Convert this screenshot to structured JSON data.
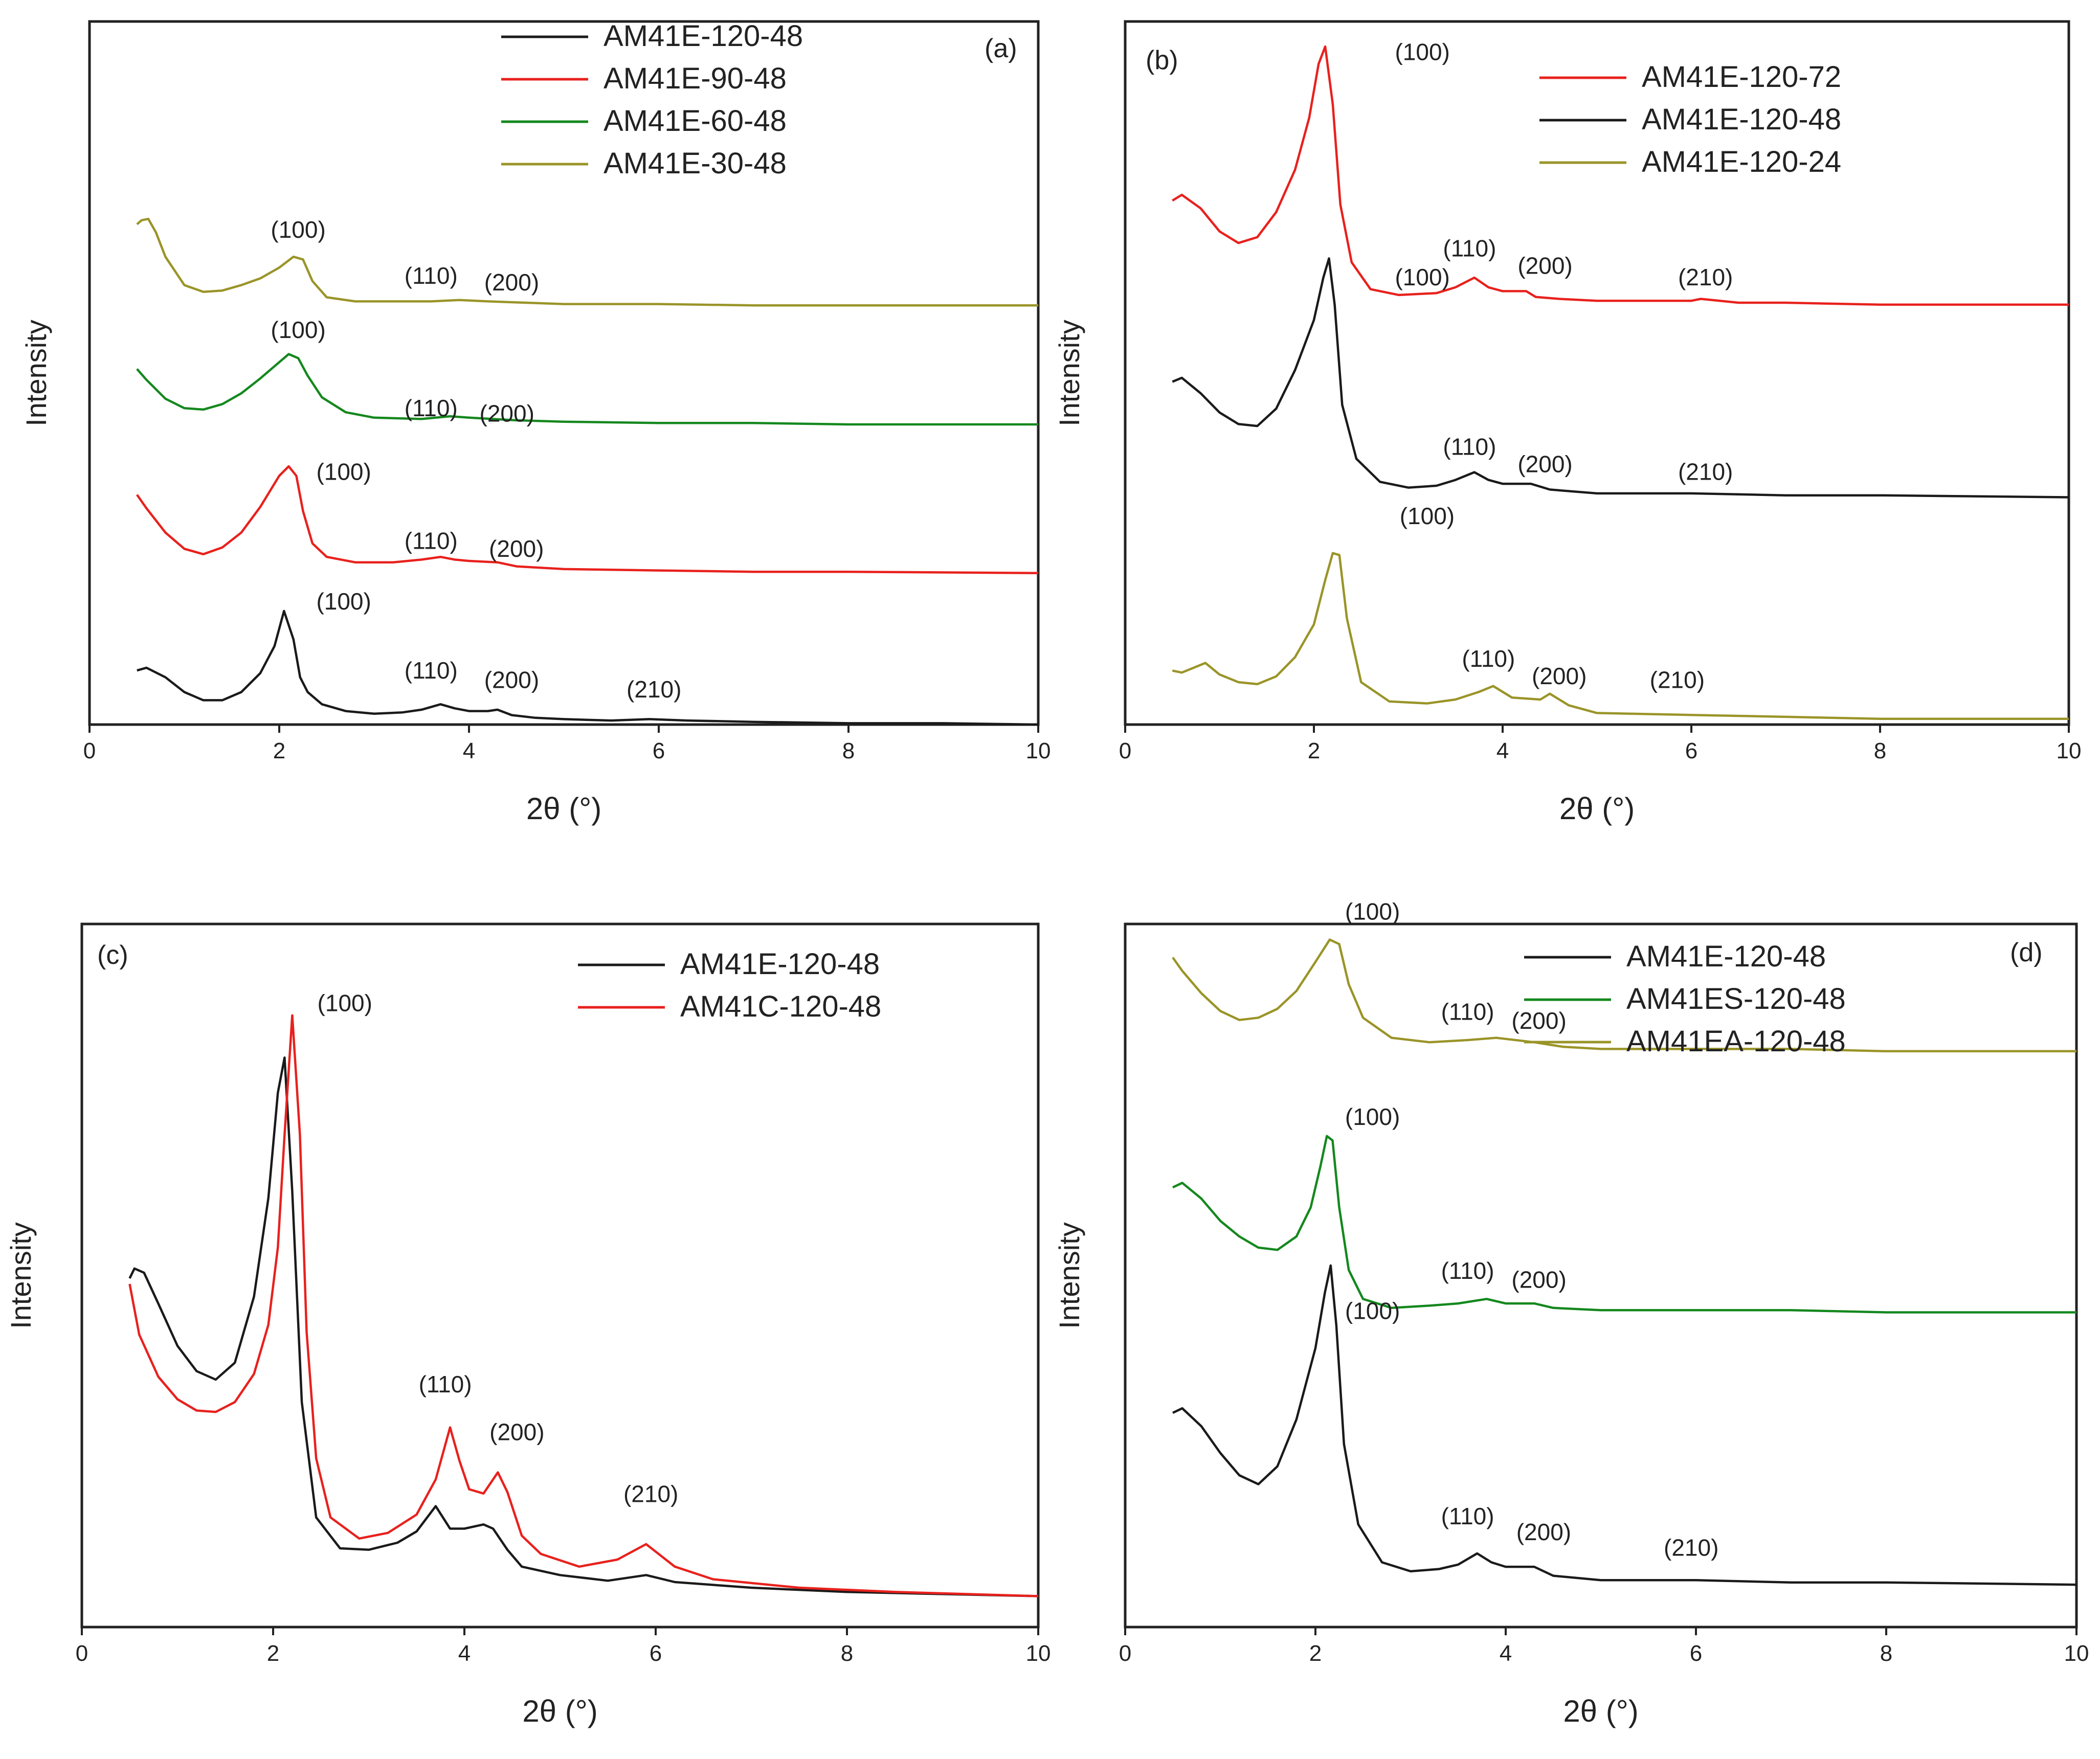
{
  "figure": {
    "xlabel": "2θ (°)",
    "ylabel": "Intensity",
    "xticks": [
      0,
      2,
      4,
      6,
      8,
      10
    ]
  },
  "colors": {
    "black": "#1a1a1a",
    "red": "#e8211d",
    "green": "#14881e",
    "olive": "#9a9428"
  },
  "chart_data": [
    {
      "panel": "(a)",
      "type": "line",
      "title": "",
      "xlabel": "2θ (°)",
      "ylabel": "Intensity",
      "xlim": [
        0,
        10
      ],
      "ylim": [
        0,
        5.2
      ],
      "legend": [
        "AM41E-120-48",
        "AM41E-90-48",
        "AM41E-60-48",
        "AM41E-30-48"
      ],
      "series": [
        {
          "name": "AM41E-120-48",
          "color": "#1a1a1a",
          "x": [
            0.5,
            0.6,
            0.8,
            1.0,
            1.2,
            1.4,
            1.6,
            1.8,
            1.95,
            2.05,
            2.15,
            2.22,
            2.3,
            2.45,
            2.7,
            3.0,
            3.3,
            3.5,
            3.7,
            3.85,
            4.0,
            4.2,
            4.3,
            4.45,
            4.7,
            5.0,
            5.5,
            5.9,
            6.3,
            7.0,
            8.0,
            9.0,
            10.0
          ],
          "y": [
            0.4,
            0.42,
            0.35,
            0.24,
            0.18,
            0.18,
            0.24,
            0.38,
            0.58,
            0.84,
            0.63,
            0.35,
            0.24,
            0.15,
            0.1,
            0.08,
            0.09,
            0.11,
            0.15,
            0.12,
            0.1,
            0.1,
            0.11,
            0.07,
            0.05,
            0.04,
            0.03,
            0.04,
            0.03,
            0.02,
            0.01,
            0.01,
            0.0
          ]
        },
        {
          "name": "AM41E-90-48",
          "color": "#e8211d",
          "x": [
            0.5,
            0.6,
            0.8,
            1.0,
            1.2,
            1.4,
            1.6,
            1.8,
            2.0,
            2.1,
            2.18,
            2.25,
            2.35,
            2.5,
            2.8,
            3.2,
            3.5,
            3.7,
            3.85,
            4.0,
            4.3,
            4.5,
            5.0,
            6.0,
            7.0,
            8.0,
            10.0
          ],
          "y": [
            1.7,
            1.6,
            1.42,
            1.3,
            1.26,
            1.31,
            1.42,
            1.61,
            1.84,
            1.91,
            1.84,
            1.58,
            1.34,
            1.24,
            1.2,
            1.2,
            1.22,
            1.24,
            1.22,
            1.21,
            1.2,
            1.17,
            1.15,
            1.14,
            1.13,
            1.13,
            1.12
          ]
        },
        {
          "name": "AM41E-60-48",
          "color": "#14881e",
          "x": [
            0.5,
            0.6,
            0.8,
            1.0,
            1.2,
            1.4,
            1.6,
            1.8,
            2.0,
            2.1,
            2.2,
            2.3,
            2.45,
            2.7,
            3.0,
            3.5,
            3.8,
            4.0,
            4.5,
            5.0,
            6.0,
            7.0,
            8.0,
            10.0
          ],
          "y": [
            2.63,
            2.55,
            2.41,
            2.34,
            2.33,
            2.37,
            2.45,
            2.56,
            2.68,
            2.74,
            2.71,
            2.58,
            2.42,
            2.31,
            2.27,
            2.26,
            2.28,
            2.27,
            2.25,
            2.24,
            2.23,
            2.23,
            2.22,
            2.22
          ]
        },
        {
          "name": "AM41E-30-48",
          "color": "#9a9428",
          "x": [
            0.5,
            0.55,
            0.62,
            0.7,
            0.8,
            1.0,
            1.2,
            1.4,
            1.6,
            1.8,
            2.0,
            2.15,
            2.25,
            2.35,
            2.5,
            2.8,
            3.2,
            3.6,
            3.9,
            4.2,
            4.6,
            5.0,
            6.0,
            7.0,
            8.0,
            10.0
          ],
          "y": [
            3.7,
            3.73,
            3.74,
            3.64,
            3.46,
            3.25,
            3.2,
            3.21,
            3.25,
            3.3,
            3.38,
            3.46,
            3.44,
            3.28,
            3.16,
            3.13,
            3.13,
            3.13,
            3.14,
            3.13,
            3.12,
            3.11,
            3.11,
            3.1,
            3.1,
            3.1
          ]
        }
      ],
      "annotations": [
        {
          "text": "(100)",
          "x": 2.2,
          "y": 3.6
        },
        {
          "text": "(110)",
          "x": 3.6,
          "y": 3.26
        },
        {
          "text": "(200)",
          "x": 4.45,
          "y": 3.21
        },
        {
          "text": "(100)",
          "x": 2.2,
          "y": 2.86
        },
        {
          "text": "(110)",
          "x": 3.6,
          "y": 2.28
        },
        {
          "text": "(200)",
          "x": 4.4,
          "y": 2.24
        },
        {
          "text": "(100)",
          "x": 2.68,
          "y": 1.81
        },
        {
          "text": "(110)",
          "x": 3.6,
          "y": 1.3
        },
        {
          "text": "(200)",
          "x": 4.5,
          "y": 1.24
        },
        {
          "text": "(100)",
          "x": 2.68,
          "y": 0.85
        },
        {
          "text": "(110)",
          "x": 3.6,
          "y": 0.34
        },
        {
          "text": "(200)",
          "x": 4.45,
          "y": 0.27
        },
        {
          "text": "(210)",
          "x": 5.95,
          "y": 0.2
        }
      ]
    },
    {
      "panel": "(b)",
      "type": "line",
      "title": "",
      "xlabel": "2θ (°)",
      "ylabel": "Intensity",
      "xlim": [
        0,
        10
      ],
      "ylim": [
        0,
        3.65
      ],
      "legend": [
        "AM41E-120-72",
        "AM41E-120-48",
        "AM41E-120-24"
      ],
      "series": [
        {
          "name": "AM41E-120-72",
          "color": "#e8211d",
          "x": [
            0.5,
            0.6,
            0.8,
            1.0,
            1.2,
            1.4,
            1.6,
            1.8,
            1.95,
            2.05,
            2.12,
            2.2,
            2.28,
            2.4,
            2.6,
            2.9,
            3.3,
            3.5,
            3.7,
            3.85,
            4.0,
            4.25,
            4.35,
            4.6,
            5.0,
            5.5,
            6.0,
            6.1,
            6.5,
            7.0,
            8.0,
            10.0
          ],
          "y": [
            2.72,
            2.75,
            2.68,
            2.56,
            2.5,
            2.53,
            2.66,
            2.88,
            3.15,
            3.43,
            3.52,
            3.22,
            2.7,
            2.4,
            2.26,
            2.23,
            2.24,
            2.27,
            2.32,
            2.27,
            2.25,
            2.25,
            2.22,
            2.21,
            2.2,
            2.2,
            2.2,
            2.21,
            2.19,
            2.19,
            2.18,
            2.18
          ]
        },
        {
          "name": "AM41E-120-48",
          "color": "#1a1a1a",
          "x": [
            0.5,
            0.6,
            0.8,
            1.0,
            1.2,
            1.4,
            1.6,
            1.8,
            2.0,
            2.1,
            2.16,
            2.22,
            2.3,
            2.45,
            2.7,
            3.0,
            3.3,
            3.5,
            3.7,
            3.85,
            4.0,
            4.3,
            4.5,
            5.0,
            5.5,
            6.0,
            7.0,
            8.0,
            10.0
          ],
          "y": [
            1.78,
            1.8,
            1.72,
            1.62,
            1.56,
            1.55,
            1.64,
            1.84,
            2.1,
            2.32,
            2.42,
            2.18,
            1.66,
            1.38,
            1.26,
            1.23,
            1.24,
            1.27,
            1.31,
            1.27,
            1.25,
            1.25,
            1.22,
            1.2,
            1.2,
            1.2,
            1.19,
            1.19,
            1.18
          ]
        },
        {
          "name": "AM41E-120-24",
          "color": "#9a9428",
          "x": [
            0.5,
            0.6,
            0.7,
            0.85,
            1.0,
            1.2,
            1.4,
            1.6,
            1.8,
            2.0,
            2.12,
            2.2,
            2.27,
            2.35,
            2.5,
            2.8,
            3.2,
            3.5,
            3.75,
            3.9,
            4.1,
            4.4,
            4.5,
            4.7,
            5.0,
            6.0,
            7.0,
            8.0,
            10.0
          ],
          "y": [
            0.28,
            0.27,
            0.29,
            0.32,
            0.26,
            0.22,
            0.21,
            0.25,
            0.35,
            0.52,
            0.75,
            0.89,
            0.88,
            0.55,
            0.22,
            0.12,
            0.11,
            0.13,
            0.17,
            0.2,
            0.14,
            0.13,
            0.16,
            0.1,
            0.06,
            0.05,
            0.04,
            0.03,
            0.03
          ]
        }
      ],
      "annotations": [
        {
          "text": "(100)",
          "x": 3.15,
          "y": 3.45
        },
        {
          "text": "(110)",
          "x": 3.65,
          "y": 2.43
        },
        {
          "text": "(200)",
          "x": 4.45,
          "y": 2.34
        },
        {
          "text": "(210)",
          "x": 6.15,
          "y": 2.28
        },
        {
          "text": "(100)",
          "x": 3.15,
          "y": 2.28
        },
        {
          "text": "(110)",
          "x": 3.65,
          "y": 1.4
        },
        {
          "text": "(200)",
          "x": 4.45,
          "y": 1.31
        },
        {
          "text": "(210)",
          "x": 6.15,
          "y": 1.27
        },
        {
          "text": "(100)",
          "x": 3.2,
          "y": 1.04
        },
        {
          "text": "(110)",
          "x": 3.85,
          "y": 0.3
        },
        {
          "text": "(200)",
          "x": 4.6,
          "y": 0.21
        },
        {
          "text": "(210)",
          "x": 5.85,
          "y": 0.19
        }
      ]
    },
    {
      "panel": "(c)",
      "type": "line",
      "title": "",
      "xlabel": "2θ (°)",
      "ylabel": "Intensity",
      "xlim": [
        0,
        10
      ],
      "ylim": [
        0,
        5.0
      ],
      "legend": [
        "AM41E-120-48",
        "AM41C-120-48"
      ],
      "series": [
        {
          "name": "AM41E-120-48",
          "color": "#1a1a1a",
          "x": [
            0.5,
            0.55,
            0.65,
            0.8,
            1.0,
            1.2,
            1.4,
            1.6,
            1.8,
            1.95,
            2.05,
            2.12,
            2.2,
            2.3,
            2.45,
            2.7,
            3.0,
            3.3,
            3.5,
            3.7,
            3.85,
            4.0,
            4.2,
            4.3,
            4.45,
            4.6,
            5.0,
            5.5,
            5.9,
            6.2,
            7.0,
            8.0,
            10.0
          ],
          "y": [
            2.48,
            2.55,
            2.52,
            2.3,
            2.0,
            1.82,
            1.76,
            1.88,
            2.35,
            3.05,
            3.8,
            4.05,
            3.1,
            1.6,
            0.78,
            0.56,
            0.55,
            0.6,
            0.68,
            0.86,
            0.7,
            0.7,
            0.73,
            0.7,
            0.55,
            0.43,
            0.37,
            0.33,
            0.37,
            0.32,
            0.28,
            0.25,
            0.22
          ]
        },
        {
          "name": "AM41C-120-48",
          "color": "#e8211d",
          "x": [
            0.5,
            0.6,
            0.8,
            1.0,
            1.2,
            1.4,
            1.6,
            1.8,
            1.95,
            2.05,
            2.12,
            2.2,
            2.28,
            2.35,
            2.45,
            2.6,
            2.9,
            3.2,
            3.5,
            3.7,
            3.85,
            3.95,
            4.05,
            4.2,
            4.35,
            4.45,
            4.6,
            4.8,
            5.2,
            5.6,
            5.9,
            6.2,
            6.6,
            7.5,
            8.5,
            10.0
          ],
          "y": [
            2.44,
            2.08,
            1.78,
            1.62,
            1.54,
            1.53,
            1.6,
            1.8,
            2.15,
            2.7,
            3.5,
            4.35,
            3.5,
            2.1,
            1.2,
            0.78,
            0.63,
            0.67,
            0.8,
            1.05,
            1.42,
            1.18,
            0.98,
            0.95,
            1.1,
            0.96,
            0.65,
            0.52,
            0.43,
            0.48,
            0.59,
            0.43,
            0.34,
            0.28,
            0.25,
            0.22
          ]
        }
      ],
      "annotations": [
        {
          "text": "(100)",
          "x": 2.75,
          "y": 4.38
        },
        {
          "text": "(110)",
          "x": 3.8,
          "y": 1.67
        },
        {
          "text": "(200)",
          "x": 4.55,
          "y": 1.33
        },
        {
          "text": "(210)",
          "x": 5.95,
          "y": 0.89
        }
      ]
    },
    {
      "panel": "(d)",
      "type": "line",
      "title": "",
      "xlabel": "2θ (°)",
      "ylabel": "Intensity",
      "xlim": [
        0,
        10
      ],
      "ylim": [
        0,
        3.15
      ],
      "legend": [
        "AM41E-120-48",
        "AM41ES-120-48",
        "AM41EA-120-48"
      ],
      "series": [
        {
          "name": "AM41E-120-48",
          "color": "#1a1a1a",
          "x": [
            0.5,
            0.6,
            0.8,
            1.0,
            1.2,
            1.4,
            1.6,
            1.8,
            2.0,
            2.1,
            2.16,
            2.22,
            2.3,
            2.45,
            2.7,
            3.0,
            3.3,
            3.5,
            3.7,
            3.85,
            4.0,
            4.3,
            4.5,
            5.0,
            5.5,
            6.0,
            7.0,
            8.0,
            10.0
          ],
          "y": [
            0.96,
            0.98,
            0.9,
            0.78,
            0.68,
            0.64,
            0.72,
            0.93,
            1.25,
            1.5,
            1.62,
            1.35,
            0.82,
            0.46,
            0.29,
            0.25,
            0.26,
            0.28,
            0.33,
            0.29,
            0.27,
            0.27,
            0.23,
            0.21,
            0.21,
            0.21,
            0.2,
            0.2,
            0.19
          ]
        },
        {
          "name": "AM41ES-120-48",
          "color": "#14881e",
          "x": [
            0.5,
            0.6,
            0.8,
            1.0,
            1.2,
            1.4,
            1.6,
            1.8,
            1.95,
            2.05,
            2.12,
            2.18,
            2.25,
            2.35,
            2.5,
            2.8,
            3.2,
            3.5,
            3.8,
            4.0,
            4.3,
            4.5,
            5.0,
            6.0,
            7.0,
            8.0,
            10.0
          ],
          "y": [
            1.97,
            1.99,
            1.92,
            1.82,
            1.75,
            1.7,
            1.69,
            1.75,
            1.88,
            2.06,
            2.2,
            2.18,
            1.88,
            1.6,
            1.47,
            1.43,
            1.44,
            1.45,
            1.47,
            1.45,
            1.45,
            1.43,
            1.42,
            1.42,
            1.42,
            1.41,
            1.41
          ]
        },
        {
          "name": "AM41EA-120-48",
          "color": "#9a9428",
          "x": [
            0.5,
            0.6,
            0.8,
            1.0,
            1.2,
            1.4,
            1.6,
            1.8,
            2.0,
            2.15,
            2.25,
            2.35,
            2.5,
            2.8,
            3.2,
            3.6,
            3.9,
            4.3,
            4.6,
            5.0,
            6.0,
            7.0,
            8.0,
            10.0
          ],
          "y": [
            3.0,
            2.94,
            2.84,
            2.76,
            2.72,
            2.73,
            2.77,
            2.85,
            2.98,
            3.08,
            3.06,
            2.88,
            2.73,
            2.64,
            2.62,
            2.63,
            2.64,
            2.62,
            2.6,
            2.59,
            2.59,
            2.59,
            2.58,
            2.58
          ]
        }
      ],
      "annotations": [
        {
          "text": "(100)",
          "x": 2.6,
          "y": 3.17
        },
        {
          "text": "(110)",
          "x": 3.6,
          "y": 2.72
        },
        {
          "text": "(200)",
          "x": 4.35,
          "y": 2.68
        },
        {
          "text": "(100)",
          "x": 2.6,
          "y": 2.25
        },
        {
          "text": "(110)",
          "x": 3.6,
          "y": 1.56
        },
        {
          "text": "(200)",
          "x": 4.35,
          "y": 1.52
        },
        {
          "text": "(100)",
          "x": 2.6,
          "y": 1.38
        },
        {
          "text": "(110)",
          "x": 3.6,
          "y": 0.46
        },
        {
          "text": "(200)",
          "x": 4.4,
          "y": 0.39
        },
        {
          "text": "(210)",
          "x": 5.95,
          "y": 0.32
        }
      ]
    }
  ]
}
